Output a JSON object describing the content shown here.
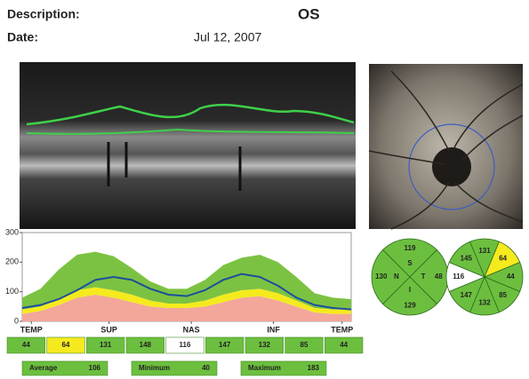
{
  "header": {
    "description_label": "Description:",
    "eye": "OS",
    "date_label": "Date:",
    "date": "Jul 12, 2007"
  },
  "chart_data": {
    "type": "line",
    "x": [
      0,
      20,
      40,
      60,
      80,
      100,
      120,
      140,
      160,
      180,
      200,
      220,
      240,
      260,
      280,
      300,
      320,
      340,
      360
    ],
    "series": [
      {
        "type": "area",
        "color": "#f2a79a",
        "values": [
          25,
          35,
          55,
          80,
          90,
          80,
          65,
          50,
          45,
          45,
          50,
          65,
          80,
          85,
          70,
          50,
          30,
          25,
          25
        ]
      },
      {
        "type": "area",
        "color": "#f5ea1e",
        "values": [
          15,
          15,
          20,
          25,
          25,
          25,
          25,
          20,
          15,
          15,
          20,
          25,
          25,
          25,
          25,
          20,
          15,
          15,
          15
        ]
      },
      {
        "type": "area",
        "color": "#7cc242",
        "values": [
          40,
          60,
          100,
          120,
          120,
          115,
          90,
          65,
          50,
          50,
          70,
          100,
          110,
          115,
          105,
          80,
          50,
          40,
          35
        ]
      },
      {
        "type": "line",
        "color": "#1c4f9c",
        "values": [
          45,
          55,
          75,
          105,
          140,
          150,
          140,
          110,
          90,
          85,
          105,
          140,
          160,
          150,
          120,
          80,
          55,
          45,
          40
        ]
      }
    ],
    "xlim": [
      0,
      360
    ],
    "xticks": [
      {
        "value": 10,
        "label": "TEMP"
      },
      {
        "value": 95,
        "label": "SUP"
      },
      {
        "value": 185,
        "label": "NAS"
      },
      {
        "value": 275,
        "label": "INF"
      },
      {
        "value": 350,
        "label": "TEMP"
      }
    ],
    "ylim": [
      0,
      300
    ],
    "yticks": [
      0,
      100,
      200,
      300
    ]
  },
  "sectors": {
    "values": [
      44,
      64,
      131,
      148,
      116,
      147,
      132,
      85,
      44
    ],
    "colors": [
      "#6cbf3e",
      "#f5ea1e",
      "#6cbf3e",
      "#6cbf3e",
      "#ffffff",
      "#6cbf3e",
      "#6cbf3e",
      "#6cbf3e",
      "#6cbf3e"
    ]
  },
  "summary": [
    {
      "label": "Average",
      "value": 106
    },
    {
      "label": "Minimum",
      "value": 40
    },
    {
      "label": "Maximum",
      "value": 183
    }
  ],
  "quadrants": {
    "labels": [
      "S",
      "T",
      "I",
      "N"
    ],
    "values": [
      119,
      48,
      129,
      130
    ],
    "colors": [
      "#6cbf3e",
      "#6cbf3e",
      "#6cbf3e",
      "#6cbf3e"
    ]
  },
  "clock": {
    "values": [
      131,
      64,
      44,
      85,
      132,
      147,
      116,
      145
    ],
    "colors": [
      "#6cbf3e",
      "#f5ea1e",
      "#6cbf3e",
      "#6cbf3e",
      "#6cbf3e",
      "#6cbf3e",
      "#ffffff",
      "#6cbf3e"
    ]
  }
}
